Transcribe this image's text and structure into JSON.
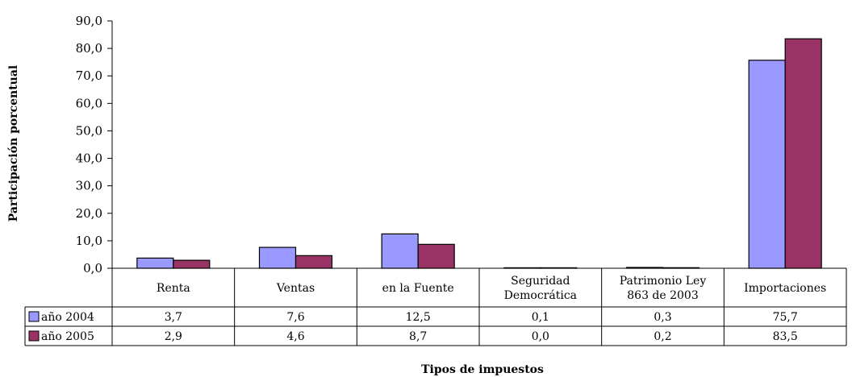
{
  "chart_data": {
    "type": "bar",
    "ylabel": "Participación porcentual",
    "xlabel": "Tipos de impuestos",
    "categories": [
      [
        "Renta"
      ],
      [
        "Ventas"
      ],
      [
        "en la Fuente"
      ],
      [
        "Seguridad",
        "Democrática"
      ],
      [
        "Patrimonio Ley",
        "863 de 2003"
      ],
      [
        "Importaciones"
      ]
    ],
    "series": [
      {
        "name": "año 2004",
        "color": "#9999ff",
        "values": [
          3.7,
          7.6,
          12.5,
          0.1,
          0.3,
          75.7
        ],
        "labels": [
          "3,7",
          "7,6",
          "12,5",
          "0,1",
          "0,3",
          "75,7"
        ]
      },
      {
        "name": "año 2005",
        "color": "#993366",
        "values": [
          2.9,
          4.6,
          8.7,
          0.0,
          0.2,
          83.5
        ],
        "labels": [
          "2,9",
          "4,6",
          "8,7",
          "0,0",
          "0,2",
          "83,5"
        ]
      }
    ],
    "ylim": [
      0,
      90
    ],
    "yticks": [
      0,
      10,
      20,
      30,
      40,
      50,
      60,
      70,
      80,
      90
    ],
    "ytick_labels": [
      "0,0",
      "10,0",
      "20,0",
      "30,0",
      "40,0",
      "50,0",
      "60,0",
      "70,0",
      "80,0",
      "90,0"
    ],
    "grid": false,
    "legend": "data-table"
  }
}
